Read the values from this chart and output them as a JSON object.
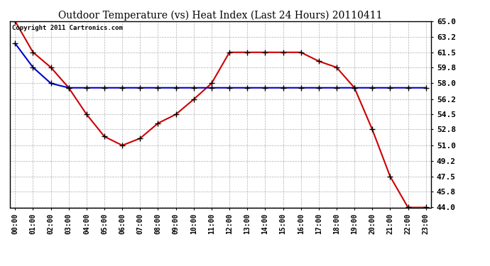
{
  "title": "Outdoor Temperature (vs) Heat Index (Last 24 Hours) 20110411",
  "copyright": "Copyright 2011 Cartronics.com",
  "hours": [
    "00:00",
    "01:00",
    "02:00",
    "03:00",
    "04:00",
    "05:00",
    "06:00",
    "07:00",
    "08:00",
    "09:00",
    "10:00",
    "11:00",
    "12:00",
    "13:00",
    "14:00",
    "15:00",
    "16:00",
    "17:00",
    "18:00",
    "19:00",
    "20:00",
    "21:00",
    "22:00",
    "23:00"
  ],
  "temp": [
    65.0,
    61.5,
    59.8,
    57.5,
    54.5,
    52.0,
    51.0,
    51.8,
    53.5,
    54.5,
    56.2,
    58.0,
    61.5,
    61.5,
    61.5,
    61.5,
    61.5,
    60.5,
    59.8,
    57.5,
    52.8,
    47.5,
    44.0,
    44.0
  ],
  "heat_index": [
    62.5,
    59.8,
    58.0,
    57.5,
    57.5,
    57.5,
    57.5,
    57.5,
    57.5,
    57.5,
    57.5,
    57.5,
    57.5,
    57.5,
    57.5,
    57.5,
    57.5,
    57.5,
    57.5,
    57.5,
    57.5,
    57.5,
    57.5,
    57.5
  ],
  "ylim_min": 44.0,
  "ylim_max": 65.0,
  "yticks": [
    44.0,
    45.8,
    47.5,
    49.2,
    51.0,
    52.8,
    54.5,
    56.2,
    58.0,
    59.8,
    61.5,
    63.2,
    65.0
  ],
  "temp_color": "#cc0000",
  "heat_index_color": "#0000cc",
  "bg_color": "#ffffff",
  "grid_color": "#b0b0b0",
  "title_fontsize": 10,
  "copyright_fontsize": 6.5
}
